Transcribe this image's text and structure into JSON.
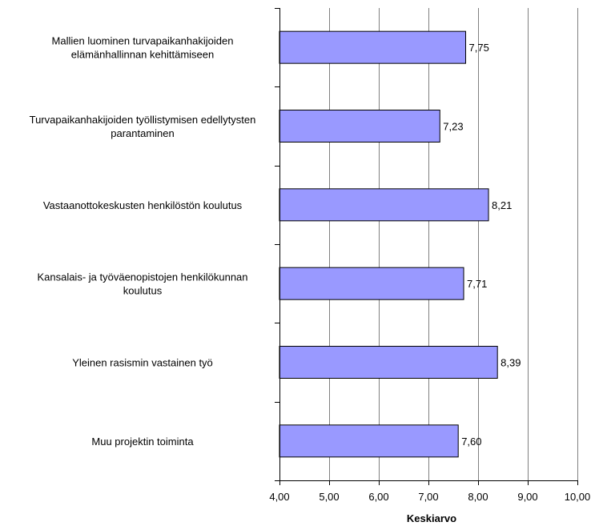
{
  "chart_data": {
    "type": "bar",
    "orientation": "horizontal",
    "categories": [
      [
        "Mallien luominen turvapaikanhakijoiden",
        "elämänhallinnan kehittämiseen"
      ],
      [
        "Turvapaikanhakijoiden työllistymisen edellytysten",
        "parantaminen"
      ],
      [
        "Vastaanottokeskusten henkilöstön koulutus"
      ],
      [
        "Kansalais- ja työväenopistojen henkilökunnan",
        "koulutus"
      ],
      [
        "Yleinen rasismin vastainen työ"
      ],
      [
        "Muu projektin toiminta"
      ]
    ],
    "values": [
      7.75,
      7.23,
      8.21,
      7.71,
      8.39,
      7.6
    ],
    "value_labels": [
      "7,75",
      "7,23",
      "8,21",
      "7,71",
      "8,39",
      "7,60"
    ],
    "xlim": [
      4,
      10
    ],
    "xticks": [
      4,
      5,
      6,
      7,
      8,
      9,
      10
    ],
    "xtick_labels": [
      "4,00",
      "5,00",
      "6,00",
      "7,00",
      "8,00",
      "9,00",
      "10,00"
    ],
    "xlabel": "Keskiarvo",
    "ylabel": "",
    "title": "",
    "grid": "vertical-major",
    "legend": "none",
    "colors": {
      "bar_fill": "#9999ff",
      "bar_stroke": "#000000",
      "grid": "#808080"
    }
  }
}
